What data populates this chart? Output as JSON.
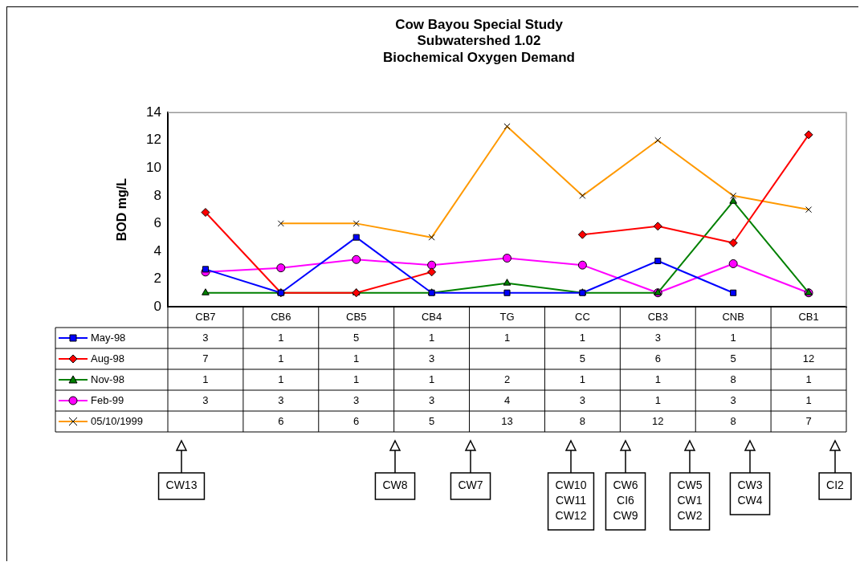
{
  "chart_data": {
    "type": "line",
    "title": "Cow Bayou Special Study\nSubwatershed 1.02\nBiochemical Oxygen Demand",
    "ylabel": "BOD mg/L",
    "categories": [
      "CB7",
      "CB6",
      "CB5",
      "CB4",
      "TG",
      "CC",
      "CB3",
      "CNB",
      "CB1"
    ],
    "ylim": [
      0,
      14
    ],
    "yticks": [
      0,
      2,
      4,
      6,
      8,
      10,
      12,
      14
    ],
    "legend": "bottom",
    "series": [
      {
        "name": "May-98",
        "color": "#0000ff",
        "marker": "square",
        "values": [
          2.7,
          1,
          5,
          1,
          1,
          1,
          3.3,
          1,
          null
        ],
        "value_labels": [
          "3",
          "1",
          "5",
          "1",
          "1",
          "1",
          "3",
          "1",
          null
        ]
      },
      {
        "name": "Aug-98",
        "color": "#ff0000",
        "marker": "diamond",
        "values": [
          6.8,
          1,
          1,
          2.5,
          null,
          5.2,
          5.8,
          4.6,
          12.4
        ],
        "value_labels": [
          "7",
          "1",
          "1",
          "3",
          null,
          "5",
          "6",
          "5",
          "12"
        ]
      },
      {
        "name": "Nov-98",
        "color": "#008000",
        "marker": "triangle",
        "values": [
          1,
          1,
          1,
          1,
          1.7,
          1,
          1,
          7.6,
          1
        ],
        "value_labels": [
          "1",
          "1",
          "1",
          "1",
          "2",
          "1",
          "1",
          "8",
          "1"
        ]
      },
      {
        "name": "Feb-99",
        "color": "#ff00ff",
        "marker": "circle",
        "values": [
          2.5,
          2.8,
          3.4,
          3,
          3.5,
          3,
          1,
          3.1,
          1
        ],
        "value_labels": [
          "3",
          "3",
          "3",
          "3",
          "4",
          "3",
          "1",
          "3",
          "1"
        ]
      },
      {
        "name": "05/10/1999",
        "color": "#ff9900",
        "marker": "cross",
        "values": [
          null,
          6,
          6,
          5,
          13,
          8,
          12,
          8,
          7
        ],
        "value_labels": [
          null,
          "6",
          "6",
          "5",
          "13",
          "8",
          "12",
          "8",
          "7"
        ]
      }
    ],
    "annotations": [
      "CW13",
      "CW8",
      "CW7",
      "CW10\nCW11\nCW12",
      "CW6\nCI6\nCW9",
      "CW5\nCW1\nCW2",
      "CW3\nCW4",
      "CI2"
    ]
  }
}
